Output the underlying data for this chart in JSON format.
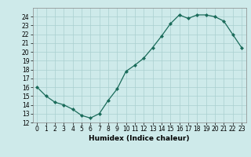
{
  "x": [
    0,
    1,
    2,
    3,
    4,
    5,
    6,
    7,
    8,
    9,
    10,
    11,
    12,
    13,
    14,
    15,
    16,
    17,
    18,
    19,
    20,
    21,
    22,
    23
  ],
  "y": [
    16,
    15,
    14.3,
    14,
    13.5,
    12.8,
    12.5,
    13,
    14.5,
    15.8,
    17.8,
    18.5,
    19.3,
    20.5,
    21.8,
    23.2,
    24.2,
    23.8,
    24.2,
    24.2,
    24.0,
    23.5,
    22.0,
    20.5
  ],
  "xlabel": "Humidex (Indice chaleur)",
  "ylim": [
    12,
    25
  ],
  "xlim": [
    -0.5,
    23.5
  ],
  "yticks": [
    12,
    13,
    14,
    15,
    16,
    17,
    18,
    19,
    20,
    21,
    22,
    23,
    24
  ],
  "xticks": [
    0,
    1,
    2,
    3,
    4,
    5,
    6,
    7,
    8,
    9,
    10,
    11,
    12,
    13,
    14,
    15,
    16,
    17,
    18,
    19,
    20,
    21,
    22,
    23
  ],
  "line_color": "#1a6b5a",
  "marker": "D",
  "marker_size": 2.0,
  "bg_color": "#ceeaea",
  "grid_color": "#aacfcf",
  "label_fontsize": 6.5,
  "tick_fontsize": 5.5
}
